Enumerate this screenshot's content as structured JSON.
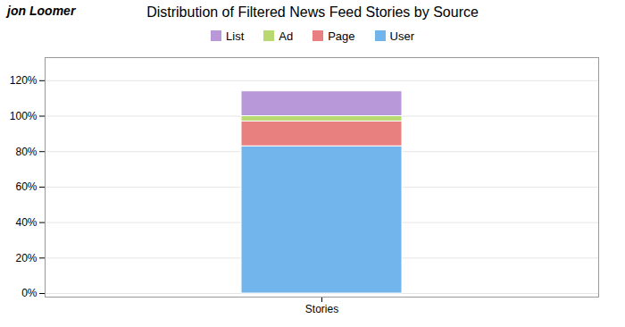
{
  "chart_data": {
    "type": "bar",
    "stacked": true,
    "title": "Distribution of Filtered News Feed Stories by Source",
    "categories": [
      "Stories"
    ],
    "series": [
      {
        "name": "User",
        "color": "#72B4EC",
        "values": [
          83.0
        ]
      },
      {
        "name": "Page",
        "color": "#E88080",
        "values": [
          14.0
        ]
      },
      {
        "name": "Ad",
        "color": "#B8D870",
        "values": [
          3.0
        ]
      },
      {
        "name": "List",
        "color": "#B898D8",
        "values": [
          14.0
        ]
      }
    ],
    "ylim": [
      -2,
      133
    ],
    "yticks": [
      {
        "value": 0,
        "label": "0%"
      },
      {
        "value": 20,
        "label": "20%"
      },
      {
        "value": 40,
        "label": "40%"
      },
      {
        "value": 60,
        "label": "60%"
      },
      {
        "value": 80,
        "label": "80%"
      },
      {
        "value": 100,
        "label": "100%"
      },
      {
        "value": 120,
        "label": "120%"
      }
    ],
    "grid": true,
    "legend": "top",
    "annotations": [
      "jon",
      "Loomer"
    ]
  }
}
